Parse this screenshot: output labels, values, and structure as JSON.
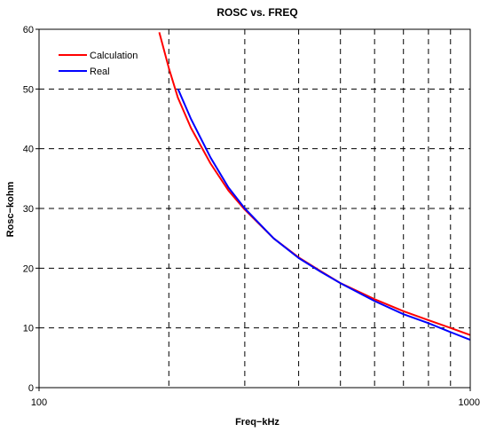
{
  "chart_data": {
    "type": "line",
    "title": "ROSC vs. FREQ",
    "xlabel": "Freq−kHz",
    "ylabel": "Rosc−kohm",
    "x_scale": "log",
    "xlim": [
      100,
      1000
    ],
    "ylim": [
      0,
      60
    ],
    "x_ticks": [
      100,
      1000
    ],
    "y_ticks": [
      0,
      10,
      20,
      30,
      40,
      50,
      60
    ],
    "grid": true,
    "legend": "top-left",
    "series": [
      {
        "name": "Calculation",
        "color": "#ff0000",
        "x": [
          190,
          200,
          210,
          225,
          250,
          275,
          300,
          350,
          400,
          450,
          500,
          600,
          700,
          800,
          900,
          1000
        ],
        "y": [
          59.5,
          53.5,
          48.5,
          43.5,
          37.5,
          33.0,
          29.8,
          25.0,
          21.8,
          19.5,
          17.5,
          14.8,
          12.8,
          11.3,
          10.0,
          8.8
        ]
      },
      {
        "name": "Real",
        "color": "#0000ff",
        "x": [
          210,
          225,
          250,
          275,
          300,
          350,
          400,
          450,
          500,
          600,
          700,
          800,
          900,
          1000
        ],
        "y": [
          50.0,
          45.0,
          38.5,
          33.5,
          30.0,
          25.0,
          21.7,
          19.4,
          17.5,
          14.5,
          12.3,
          10.8,
          9.3,
          8.0
        ]
      }
    ]
  }
}
